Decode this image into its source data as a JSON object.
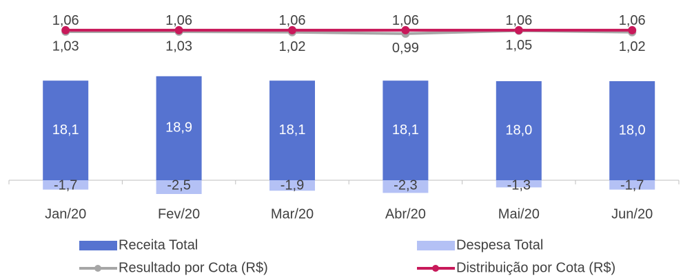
{
  "chart_data": {
    "type": "bar",
    "categories": [
      "Jan/20",
      "Fev/20",
      "Mar/20",
      "Abr/20",
      "Mai/20",
      "Jun/20"
    ],
    "ylim": [
      -4,
      32
    ],
    "y2lim": [
      -2.5,
      1.6
    ],
    "legend": "bottom",
    "series": [
      {
        "name": "Receita Total",
        "type": "bar",
        "color": "#5673d0",
        "values": [
          18.1,
          18.9,
          18.1,
          18.1,
          18.0,
          18.0
        ],
        "value_labels": [
          "18,1",
          "18,9",
          "18,1",
          "18,1",
          "18,0",
          "18,0"
        ]
      },
      {
        "name": "Despesa Total",
        "type": "bar",
        "color": "#b4c1f5",
        "values": [
          -1.7,
          -2.5,
          -1.9,
          -2.3,
          -1.3,
          -1.7
        ],
        "value_labels": [
          "-1,7",
          "-2,5",
          "-1,9",
          "-2,3",
          "-1,3",
          "-1,7"
        ]
      },
      {
        "name": "Resultado por Cota (R$)",
        "type": "line",
        "axis": "y2",
        "color": "#a6a6a6",
        "values": [
          1.03,
          1.03,
          1.02,
          0.99,
          1.05,
          1.02
        ],
        "value_labels": [
          "1,03",
          "1,03",
          "1,02",
          "0,99",
          "1,05",
          "1,02"
        ]
      },
      {
        "name": "Distribuição por Cota (R$)",
        "type": "line",
        "axis": "y2",
        "color": "#c8195a",
        "values": [
          1.06,
          1.06,
          1.06,
          1.06,
          1.06,
          1.06
        ],
        "value_labels": [
          "1,06",
          "1,06",
          "1,06",
          "1,06",
          "1,06",
          "1,06"
        ]
      }
    ]
  }
}
